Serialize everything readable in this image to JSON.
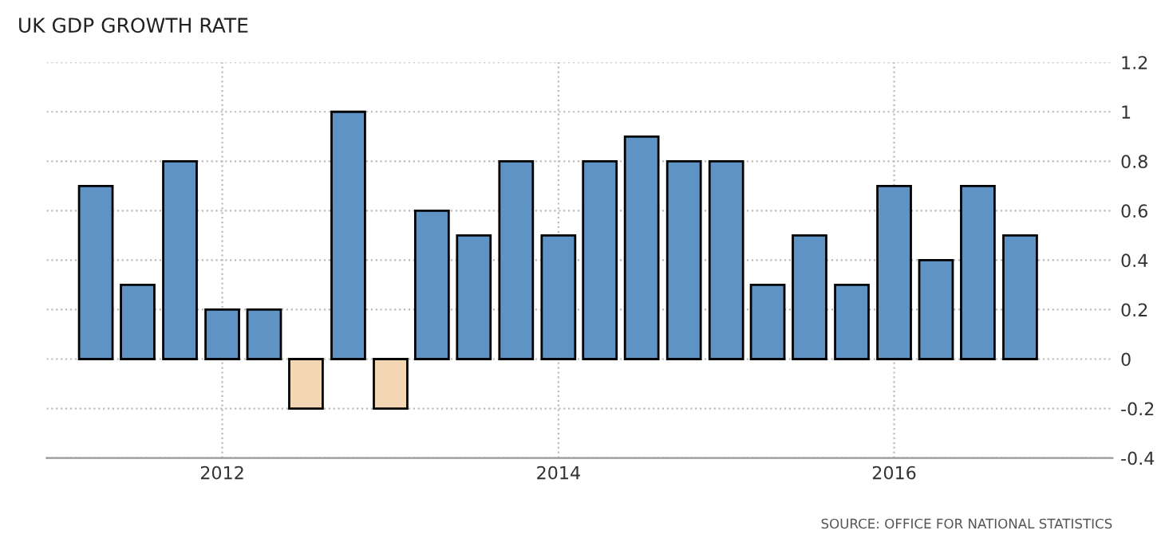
{
  "chart_data": {
    "type": "bar",
    "title": "UK GDP GROWTH RATE",
    "x": [
      "2011-04",
      "2011-07",
      "2011-10",
      "2012-01",
      "2012-04",
      "2012-07",
      "2012-10",
      "2013-01",
      "2013-04",
      "2013-07",
      "2013-10",
      "2014-01",
      "2014-04",
      "2014-07",
      "2014-10",
      "2015-01",
      "2015-04",
      "2015-07",
      "2015-10",
      "2016-01",
      "2016-04",
      "2016-07",
      "2016-10"
    ],
    "values": [
      0.7,
      0.3,
      0.8,
      0.2,
      0.2,
      -0.2,
      1.0,
      -0.2,
      0.6,
      0.5,
      0.8,
      0.5,
      0.8,
      0.9,
      0.8,
      0.8,
      0.3,
      0.5,
      0.3,
      0.7,
      0.4,
      0.7,
      0.5
    ],
    "colors": [
      "#5f93c6",
      "#5f93c6",
      "#5f93c6",
      "#5f93c6",
      "#5f93c6",
      "#f3d6b4",
      "#5f93c6",
      "#f3d6b4",
      "#5f93c6",
      "#5f93c6",
      "#5f93c6",
      "#5f93c6",
      "#5f93c6",
      "#5f93c6",
      "#5f93c6",
      "#5f93c6",
      "#5f93c6",
      "#5f93c6",
      "#5f93c6",
      "#5f93c6",
      "#5f93c6",
      "#5f93c6",
      "#5f93c6"
    ],
    "xlim": [
      "2010-12-15",
      "2017-04-20"
    ],
    "xticks": [
      {
        "value": "2012-01",
        "label": "2012"
      },
      {
        "value": "2014-01",
        "label": "2014"
      },
      {
        "value": "2016-01",
        "label": "2016"
      }
    ],
    "ylim": [
      -0.4,
      1.2
    ],
    "yticks": [
      -0.4,
      -0.2,
      0,
      0.2,
      0.4,
      0.6,
      0.8,
      1,
      1.2
    ],
    "grid": true,
    "annotations": [
      "SOURCE: OFFICE FOR NATIONAL STATISTICS"
    ]
  }
}
